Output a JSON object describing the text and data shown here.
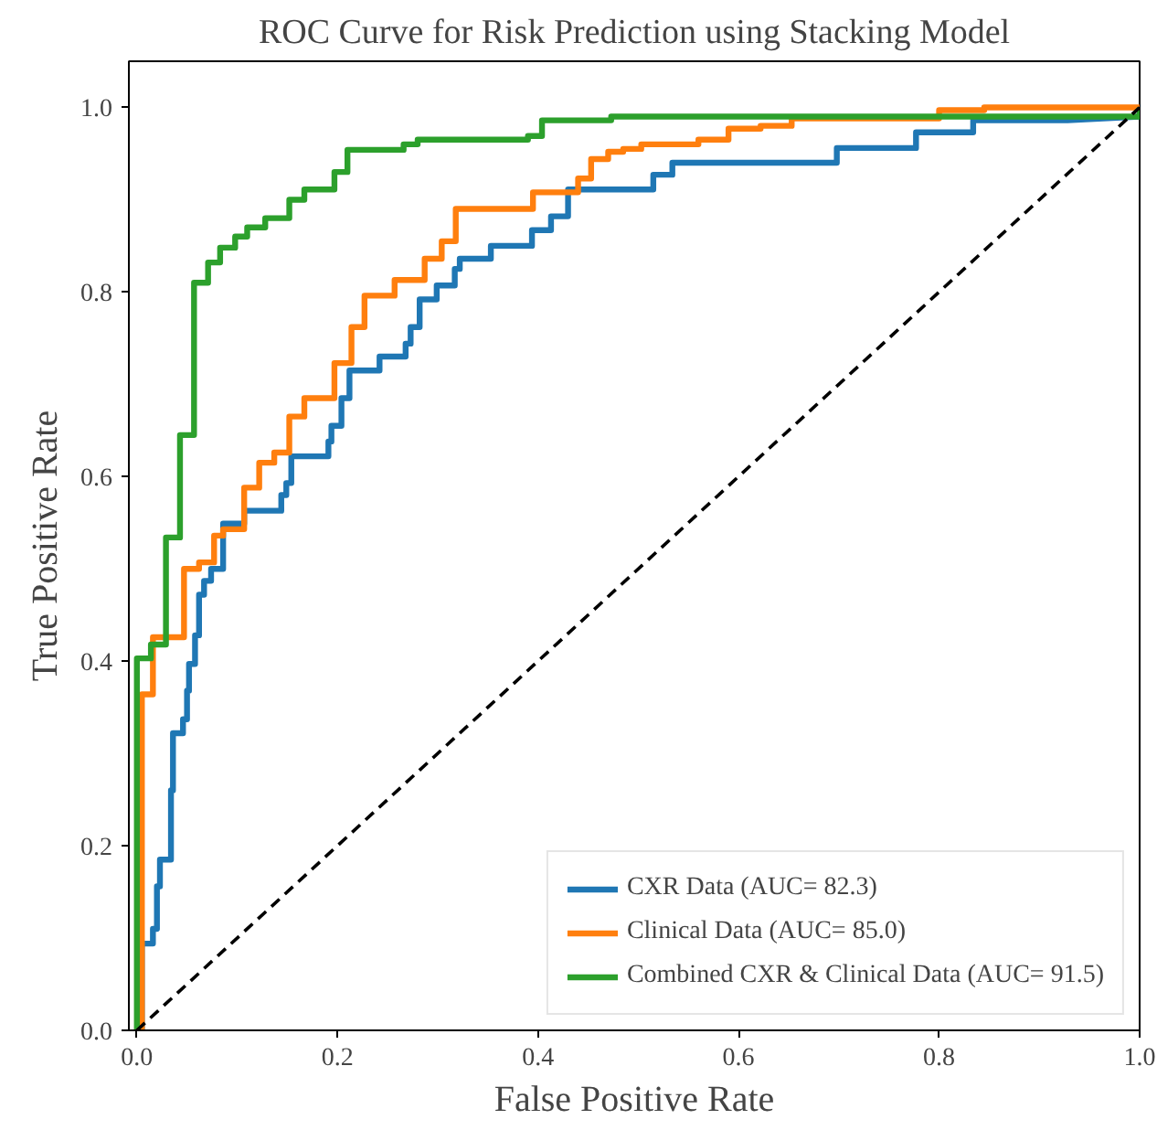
{
  "chart_data": {
    "type": "line",
    "title": "ROC Curve for Risk Prediction using Stacking Model",
    "xlabel": "False Positive Rate",
    "ylabel": "True Positive Rate",
    "xlim": [
      -0.008,
      1.0
    ],
    "ylim": [
      0,
      1.05
    ],
    "xticks": [
      {
        "value": 0,
        "label": "0.0"
      },
      0.2,
      0.4,
      0.6,
      0.8,
      {
        "value": 1,
        "label": "1.0"
      }
    ],
    "yticks": [
      {
        "value": 0,
        "label": "0.0"
      },
      0.2,
      0.4,
      0.6,
      0.8,
      {
        "value": 1,
        "label": "1.0"
      }
    ],
    "grid": false,
    "legend": "bottom right",
    "marker": "none",
    "series": [
      {
        "name": "CXR Data (AUC= 82.3)",
        "color": "#1f77b4",
        "line_style": "solid",
        "x": [
          0,
          0.005,
          0.005,
          0.016,
          0.016,
          0.02,
          0.02,
          0.023,
          0.023,
          0.034,
          0.034,
          0.036,
          0.036,
          0.046,
          0.046,
          0.05,
          0.05,
          0.052,
          0.052,
          0.058,
          0.058,
          0.062,
          0.062,
          0.067,
          0.067,
          0.074,
          0.074,
          0.086,
          0.086,
          0.107,
          0.107,
          0.144,
          0.144,
          0.149,
          0.149,
          0.154,
          0.154,
          0.191,
          0.191,
          0.194,
          0.194,
          0.204,
          0.204,
          0.212,
          0.212,
          0.242,
          0.242,
          0.268,
          0.268,
          0.273,
          0.273,
          0.282,
          0.282,
          0.299,
          0.299,
          0.317,
          0.317,
          0.322,
          0.322,
          0.353,
          0.353,
          0.394,
          0.394,
          0.413,
          0.413,
          0.43,
          0.43,
          0.515,
          0.515,
          0.534,
          0.534,
          0.698,
          0.698,
          0.777,
          0.777,
          0.834,
          0.834,
          0.928,
          1.0,
          1.0
        ],
        "values": [
          0,
          0,
          0.094,
          0.094,
          0.11,
          0.11,
          0.156,
          0.156,
          0.185,
          0.185,
          0.26,
          0.26,
          0.322,
          0.322,
          0.337,
          0.337,
          0.368,
          0.368,
          0.397,
          0.397,
          0.428,
          0.428,
          0.472,
          0.472,
          0.487,
          0.487,
          0.5,
          0.5,
          0.549,
          0.549,
          0.563,
          0.563,
          0.58,
          0.58,
          0.593,
          0.593,
          0.622,
          0.622,
          0.638,
          0.638,
          0.655,
          0.655,
          0.685,
          0.685,
          0.715,
          0.715,
          0.73,
          0.73,
          0.744,
          0.744,
          0.762,
          0.762,
          0.792,
          0.792,
          0.807,
          0.807,
          0.825,
          0.825,
          0.836,
          0.836,
          0.85,
          0.85,
          0.867,
          0.867,
          0.882,
          0.882,
          0.911,
          0.911,
          0.927,
          0.927,
          0.94,
          0.94,
          0.956,
          0.956,
          0.973,
          0.973,
          0.986,
          0.986,
          0.99,
          1.0
        ]
      },
      {
        "name": "Clinical Data (AUC= 85.0)",
        "color": "#ff7f0e",
        "line_style": "solid",
        "x": [
          0,
          0.005,
          0.005,
          0.016,
          0.016,
          0.047,
          0.047,
          0.062,
          0.062,
          0.077,
          0.077,
          0.086,
          0.086,
          0.107,
          0.107,
          0.122,
          0.122,
          0.137,
          0.137,
          0.152,
          0.152,
          0.167,
          0.167,
          0.197,
          0.197,
          0.214,
          0.214,
          0.227,
          0.227,
          0.257,
          0.257,
          0.287,
          0.287,
          0.304,
          0.304,
          0.318,
          0.318,
          0.395,
          0.395,
          0.44,
          0.44,
          0.453,
          0.453,
          0.47,
          0.47,
          0.485,
          0.485,
          0.503,
          0.503,
          0.56,
          0.56,
          0.59,
          0.59,
          0.622,
          0.622,
          0.653,
          0.653,
          0.8,
          0.8,
          0.845,
          0.845,
          1.0
        ],
        "values": [
          0,
          0,
          0.364,
          0.364,
          0.426,
          0.426,
          0.5,
          0.5,
          0.507,
          0.507,
          0.536,
          0.536,
          0.543,
          0.543,
          0.588,
          0.588,
          0.615,
          0.615,
          0.626,
          0.626,
          0.665,
          0.665,
          0.685,
          0.685,
          0.723,
          0.723,
          0.762,
          0.762,
          0.796,
          0.796,
          0.813,
          0.813,
          0.836,
          0.836,
          0.855,
          0.855,
          0.89,
          0.89,
          0.908,
          0.908,
          0.923,
          0.923,
          0.944,
          0.944,
          0.952,
          0.952,
          0.955,
          0.955,
          0.96,
          0.96,
          0.965,
          0.965,
          0.977,
          0.977,
          0.98,
          0.98,
          0.988,
          0.988,
          0.997,
          0.997,
          1.0,
          1.0
        ]
      },
      {
        "name": "Combined CXR & Clinical Data (AUC= 91.5)",
        "color": "#2ca02c",
        "line_style": "solid",
        "x": [
          0,
          0,
          0.014,
          0.014,
          0.029,
          0.029,
          0.043,
          0.043,
          0.057,
          0.057,
          0.071,
          0.071,
          0.083,
          0.083,
          0.098,
          0.098,
          0.11,
          0.11,
          0.128,
          0.128,
          0.152,
          0.152,
          0.167,
          0.167,
          0.197,
          0.197,
          0.21,
          0.21,
          0.266,
          0.266,
          0.28,
          0.28,
          0.39,
          0.39,
          0.404,
          0.404,
          0.473,
          0.473,
          1.0,
          1.0
        ],
        "values": [
          0,
          0.403,
          0.403,
          0.418,
          0.418,
          0.534,
          0.534,
          0.645,
          0.645,
          0.81,
          0.81,
          0.832,
          0.832,
          0.848,
          0.848,
          0.86,
          0.86,
          0.87,
          0.87,
          0.88,
          0.88,
          0.9,
          0.9,
          0.911,
          0.911,
          0.93,
          0.93,
          0.954,
          0.954,
          0.96,
          0.96,
          0.965,
          0.965,
          0.969,
          0.969,
          0.986,
          0.986,
          0.99,
          0.99,
          1.0
        ]
      },
      {
        "color": "#000000",
        "line_style": "dashed",
        "x": [
          0,
          1
        ],
        "values": [
          0,
          1
        ]
      }
    ]
  }
}
